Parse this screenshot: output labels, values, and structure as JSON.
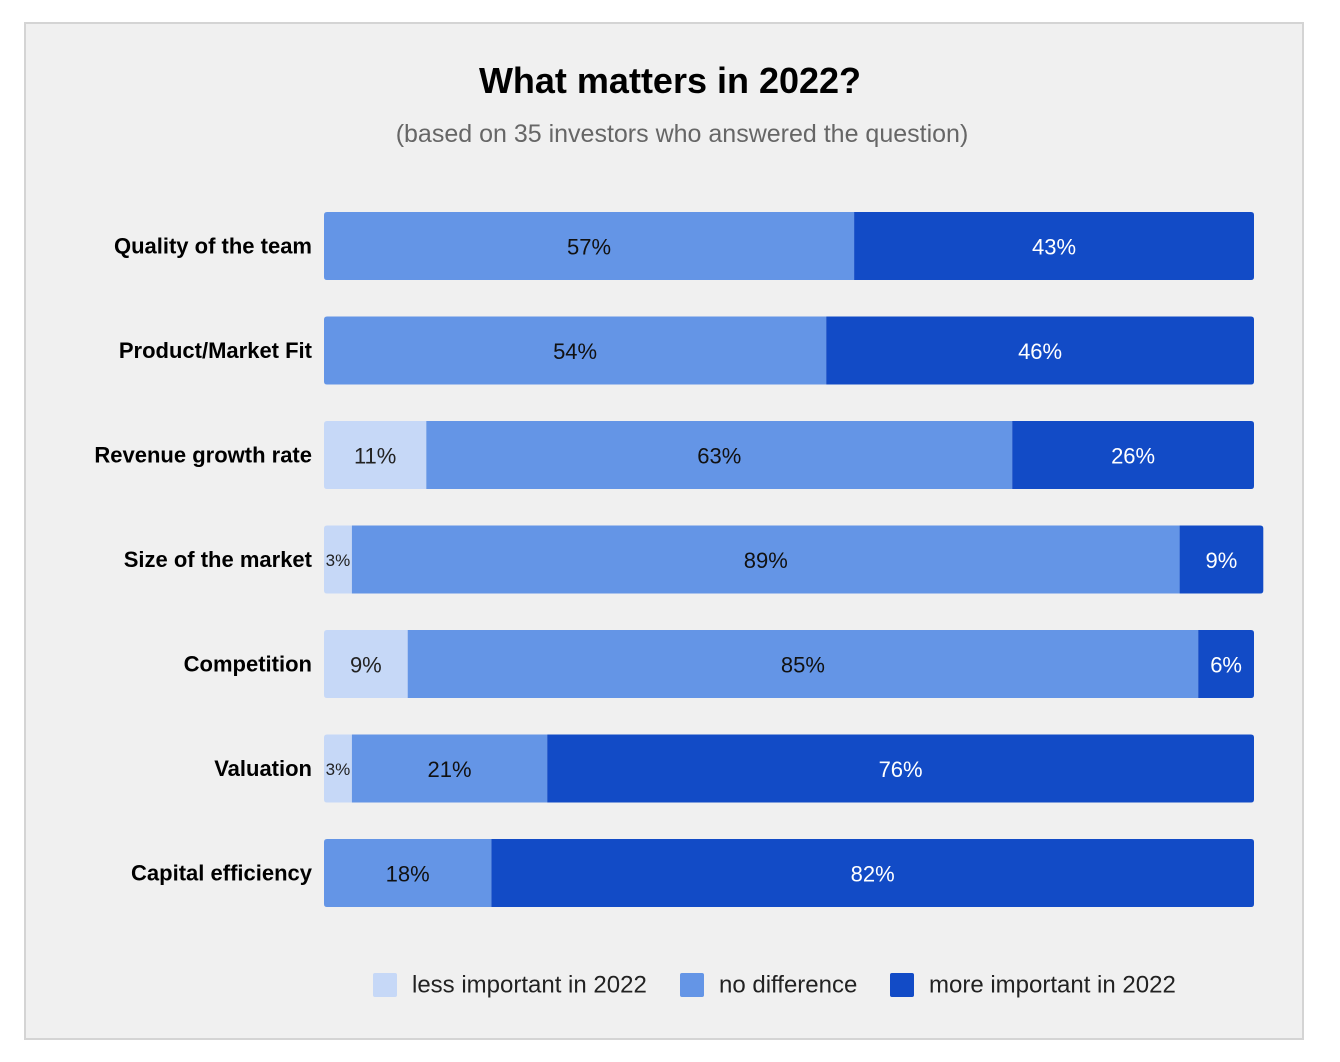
{
  "chart_data": {
    "type": "bar",
    "orientation": "horizontal",
    "stacked": true,
    "title": "What matters in 2022?",
    "subtitle": "(based on 35 investors who answered the question)",
    "categories": [
      "Quality of the team",
      "Product/Market Fit",
      "Revenue growth rate",
      "Size of the market",
      "Competition",
      "Valuation",
      "Capital efficiency"
    ],
    "series": [
      {
        "name": "less important in 2022",
        "color": "#c6d8f7",
        "label_color": "#222222",
        "values": [
          0,
          0,
          11,
          3,
          9,
          3,
          0
        ]
      },
      {
        "name": "no difference",
        "color": "#6495e6",
        "label_color": "#111111",
        "values": [
          57,
          54,
          63,
          89,
          85,
          21,
          18
        ]
      },
      {
        "name": "more important in 2022",
        "color": "#124bc6",
        "label_color": "#ffffff",
        "values": [
          43,
          46,
          26,
          9,
          6,
          76,
          82
        ]
      }
    ],
    "value_suffix": "%",
    "xlim": [
      0,
      100
    ],
    "grid": false,
    "legend_position": "bottom"
  }
}
